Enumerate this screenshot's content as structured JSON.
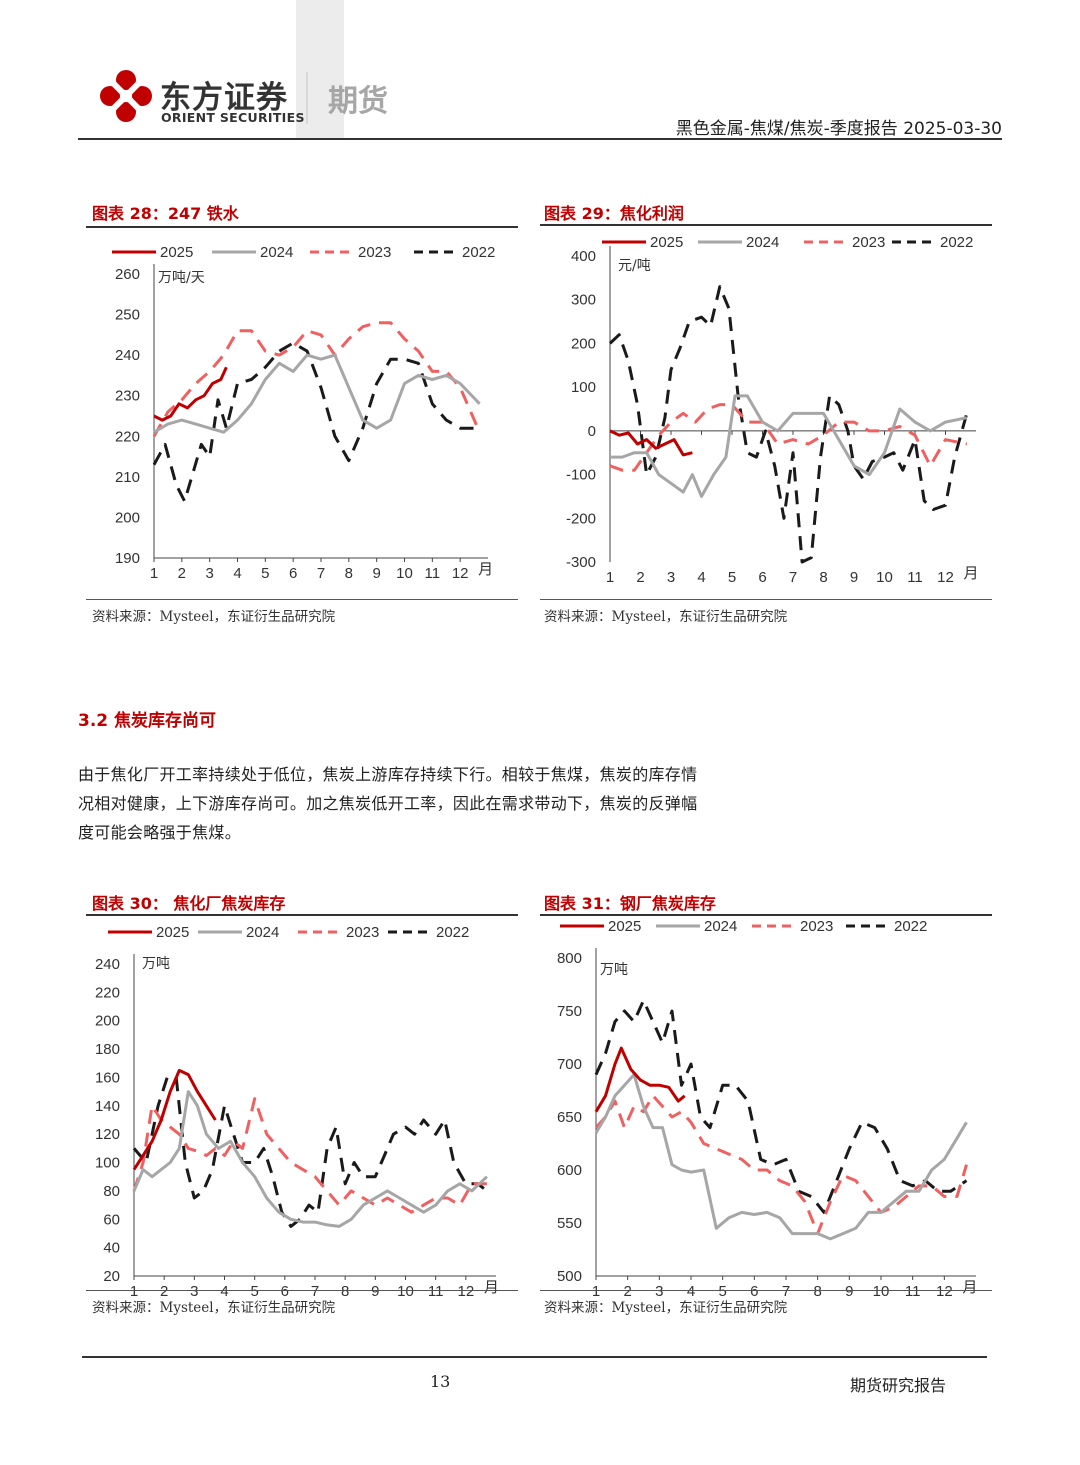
{
  "header": {
    "brand_cn": "东方证券",
    "brand_en": "ORIENT SECURITIES",
    "brand_unit": "期货",
    "report_title": "黑色金属-焦煤/焦炭-季度报告 2025-03-30",
    "colors": {
      "brand_red": "#c00000",
      "gray": "#a6a6a6"
    }
  },
  "charts": [
    {
      "fig_title": "图表 28：247 铁水",
      "source": "资料来源：Mysteel，东证衍生品研究院",
      "unit": "万吨/天",
      "month_suffix": "月",
      "yticks": [
        "260",
        "250",
        "240",
        "230",
        "220",
        "210",
        "200",
        "190"
      ],
      "xticks": [
        "1",
        "2",
        "3",
        "4",
        "5",
        "6",
        "7",
        "8",
        "9",
        "10",
        "11",
        "12"
      ],
      "legend": [
        "2025",
        "2024",
        "2023",
        "2022"
      ]
    },
    {
      "fig_title": "图表 29：焦化利润",
      "source": "资料来源：Mysteel，东证衍生品研究院",
      "unit": "元/吨",
      "month_suffix": "月",
      "yticks": [
        "400",
        "300",
        "200",
        "100",
        "0",
        "-100",
        "-200",
        "-300"
      ],
      "xticks": [
        "1",
        "2",
        "3",
        "4",
        "5",
        "6",
        "7",
        "8",
        "9",
        "10",
        "11",
        "12"
      ],
      "legend": [
        "2025",
        "2024",
        "2023",
        "2022"
      ]
    },
    {
      "fig_title": "图表 30： 焦化厂焦炭库存",
      "source": "资料来源：Mysteel，东证衍生品研究院",
      "unit": "万吨",
      "month_suffix": "月",
      "yticks": [
        "240",
        "220",
        "200",
        "180",
        "160",
        "140",
        "120",
        "100",
        "80",
        "60",
        "40",
        "20"
      ],
      "xticks": [
        "1",
        "2",
        "3",
        "4",
        "5",
        "6",
        "7",
        "8",
        "9",
        "10",
        "11",
        "12"
      ],
      "legend": [
        "2025",
        "2024",
        "2023",
        "2022"
      ]
    },
    {
      "fig_title": "图表 31：钢厂焦炭库存",
      "source": "资料来源：Mysteel，东证衍生品研究院",
      "unit": "万吨",
      "month_suffix": "月",
      "yticks": [
        "800",
        "750",
        "700",
        "650",
        "600",
        "550",
        "500"
      ],
      "xticks": [
        "1",
        "2",
        "3",
        "4",
        "5",
        "6",
        "7",
        "8",
        "9",
        "10",
        "11",
        "12"
      ],
      "legend": [
        "2025",
        "2024",
        "2023",
        "2022"
      ]
    }
  ],
  "chart_data": [
    {
      "type": "line",
      "ylim": [
        190,
        260
      ],
      "xlim": [
        1,
        13
      ],
      "series": [
        {
          "name": "2025",
          "color": "#c00000",
          "style": "solid",
          "x": [
            1,
            1.3,
            1.6,
            1.9,
            2.2,
            2.5,
            2.8,
            3.1,
            3.4,
            3.6
          ],
          "y": [
            225,
            224,
            225,
            228,
            227,
            229,
            230,
            233,
            234,
            237
          ]
        },
        {
          "name": "2024",
          "color": "#a6a6a6",
          "style": "solid",
          "x": [
            1,
            1.5,
            2,
            2.5,
            3,
            3.5,
            4,
            4.5,
            5,
            5.5,
            6,
            6.5,
            7,
            7.5,
            8,
            8.5,
            9,
            9.5,
            10,
            10.5,
            11,
            11.5,
            12,
            12.7
          ],
          "y": [
            221,
            223,
            224,
            223,
            222,
            221,
            224,
            228,
            234,
            238,
            236,
            240,
            239,
            240,
            232,
            224,
            222,
            224,
            233,
            235,
            234,
            235,
            233,
            228
          ]
        },
        {
          "name": "2023",
          "color": "#f06060",
          "style": "dashed",
          "x": [
            1,
            1.5,
            2,
            2.5,
            3,
            3.5,
            4,
            4.5,
            5,
            5.5,
            6,
            6.5,
            7,
            7.5,
            8,
            8.5,
            9,
            9.5,
            10,
            10.5,
            11,
            11.5,
            12,
            12.7
          ],
          "y": [
            220,
            226,
            229,
            233,
            236,
            240,
            246,
            246,
            241,
            240,
            242,
            246,
            245,
            240,
            244,
            247,
            248,
            248,
            244,
            241,
            236,
            236,
            232,
            221
          ]
        },
        {
          "name": "2022",
          "color": "#1a1a1a",
          "style": "dashed",
          "x": [
            1,
            1.4,
            1.8,
            2.1,
            2.4,
            2.7,
            3,
            3.3,
            3.6,
            4,
            4.5,
            5,
            5.5,
            6,
            6.5,
            7,
            7.5,
            8,
            8.5,
            9,
            9.5,
            10,
            10.5,
            11,
            11.5,
            12,
            12.7
          ],
          "y": [
            213,
            218,
            208,
            204,
            211,
            218,
            215,
            229,
            222,
            233,
            234,
            237,
            241,
            243,
            241,
            232,
            220,
            214,
            222,
            233,
            239,
            239,
            238,
            228,
            224,
            222,
            222
          ]
        }
      ]
    },
    {
      "type": "line",
      "ylim": [
        -300,
        400
      ],
      "xlim": [
        1,
        13
      ],
      "series": [
        {
          "name": "2025",
          "color": "#c00000",
          "style": "solid",
          "x": [
            1,
            1.3,
            1.6,
            1.9,
            2.2,
            2.5,
            2.8,
            3.1,
            3.4,
            3.7
          ],
          "y": [
            0,
            -10,
            -5,
            -30,
            -20,
            -40,
            -30,
            -20,
            -55,
            -50
          ]
        },
        {
          "name": "2024",
          "color": "#a6a6a6",
          "style": "solid",
          "x": [
            1,
            1.4,
            1.8,
            2.2,
            2.6,
            3,
            3.4,
            3.7,
            4,
            4.4,
            4.8,
            5.1,
            5.5,
            6,
            6.5,
            7,
            7.5,
            8,
            8.5,
            9,
            9.5,
            10,
            10.5,
            11,
            11.5,
            12,
            12.7
          ],
          "y": [
            -60,
            -60,
            -50,
            -50,
            -100,
            -120,
            -140,
            -100,
            -150,
            -100,
            -60,
            80,
            80,
            20,
            0,
            40,
            40,
            40,
            -20,
            -80,
            -100,
            -50,
            50,
            20,
            0,
            20,
            30
          ]
        },
        {
          "name": "2023",
          "color": "#f06060",
          "style": "dashed",
          "x": [
            1,
            1.4,
            1.8,
            2.2,
            2.6,
            3,
            3.4,
            3.8,
            4.2,
            4.6,
            5,
            5.5,
            6,
            6.5,
            7,
            7.5,
            8,
            8.5,
            9,
            9.5,
            10,
            10.5,
            11,
            11.5,
            12,
            12.7
          ],
          "y": [
            -80,
            -90,
            -90,
            -50,
            -10,
            20,
            40,
            20,
            50,
            60,
            60,
            20,
            20,
            -30,
            -20,
            -30,
            -10,
            20,
            20,
            0,
            0,
            10,
            -10,
            -80,
            -20,
            -30
          ]
        },
        {
          "name": "2022",
          "color": "#1a1a1a",
          "style": "dashed",
          "x": [
            1,
            1.3,
            1.6,
            1.9,
            2.2,
            2.5,
            2.8,
            3,
            3.3,
            3.6,
            4,
            4.3,
            4.6,
            4.9,
            5.2,
            5.5,
            5.8,
            6.1,
            6.4,
            6.7,
            7,
            7.3,
            7.6,
            7.9,
            8.2,
            8.5,
            8.8,
            9,
            9.3,
            9.6,
            10,
            10.3,
            10.6,
            11,
            11.3,
            11.6,
            12,
            12.3,
            12.7
          ],
          "y": [
            200,
            220,
            160,
            60,
            -100,
            -60,
            30,
            140,
            190,
            250,
            260,
            240,
            330,
            280,
            80,
            -50,
            -60,
            0,
            -80,
            -200,
            -50,
            -300,
            -290,
            -60,
            80,
            60,
            0,
            -80,
            -110,
            -70,
            -60,
            -50,
            -90,
            -20,
            -160,
            -180,
            -170,
            -60,
            40
          ]
        }
      ]
    },
    {
      "type": "line",
      "ylim": [
        20,
        240
      ],
      "xlim": [
        1,
        13
      ],
      "series": [
        {
          "name": "2025",
          "color": "#c00000",
          "style": "solid",
          "x": [
            1,
            1.3,
            1.6,
            1.9,
            2.2,
            2.5,
            2.8,
            3.1,
            3.4,
            3.7
          ],
          "y": [
            95,
            105,
            115,
            130,
            150,
            165,
            162,
            150,
            140,
            130
          ]
        },
        {
          "name": "2024",
          "color": "#a6a6a6",
          "style": "solid",
          "x": [
            1,
            1.3,
            1.6,
            1.9,
            2.2,
            2.5,
            2.8,
            3.1,
            3.4,
            3.8,
            4.2,
            4.6,
            5,
            5.4,
            5.8,
            6.2,
            6.6,
            7,
            7.4,
            7.8,
            8.2,
            8.6,
            9,
            9.4,
            9.8,
            10.2,
            10.6,
            11,
            11.4,
            11.8,
            12.2,
            12.7
          ],
          "y": [
            80,
            95,
            90,
            95,
            100,
            110,
            150,
            140,
            120,
            110,
            115,
            100,
            90,
            75,
            65,
            60,
            58,
            58,
            56,
            55,
            60,
            70,
            75,
            80,
            75,
            70,
            65,
            70,
            80,
            85,
            80,
            90
          ]
        },
        {
          "name": "2023",
          "color": "#f06060",
          "style": "dashed",
          "x": [
            1,
            1.3,
            1.6,
            1.9,
            2.2,
            2.5,
            2.8,
            3.1,
            3.4,
            3.7,
            4,
            4.3,
            4.6,
            5,
            5.4,
            5.8,
            6.2,
            6.6,
            7,
            7.4,
            7.8,
            8.2,
            8.6,
            9,
            9.4,
            9.8,
            10.2,
            10.6,
            11,
            11.4,
            11.8,
            12.2,
            12.7
          ],
          "y": [
            80,
            100,
            140,
            130,
            125,
            120,
            110,
            108,
            105,
            110,
            105,
            115,
            110,
            145,
            120,
            110,
            100,
            95,
            90,
            80,
            70,
            80,
            75,
            70,
            75,
            70,
            65,
            70,
            75,
            75,
            70,
            85,
            85
          ]
        },
        {
          "name": "2022",
          "color": "#1a1a1a",
          "style": "dashed",
          "x": [
            1,
            1.4,
            1.8,
            2.1,
            2.4,
            2.7,
            3,
            3.3,
            3.6,
            4,
            4.3,
            4.6,
            5,
            5.3,
            5.6,
            5.9,
            6.2,
            6.5,
            6.8,
            7.1,
            7.4,
            7.7,
            8,
            8.3,
            8.6,
            9,
            9.3,
            9.6,
            10,
            10.3,
            10.6,
            11,
            11.3,
            11.6,
            12,
            12.4,
            12.7
          ],
          "y": [
            110,
            100,
            140,
            160,
            160,
            100,
            75,
            80,
            95,
            140,
            120,
            100,
            100,
            110,
            90,
            65,
            55,
            60,
            70,
            65,
            110,
            125,
            85,
            100,
            90,
            90,
            105,
            120,
            125,
            120,
            130,
            120,
            130,
            100,
            85,
            85,
            80
          ]
        }
      ]
    },
    {
      "type": "line",
      "ylim": [
        500,
        800
      ],
      "xlim": [
        1,
        13
      ],
      "series": [
        {
          "name": "2025",
          "color": "#c00000",
          "style": "solid",
          "x": [
            1,
            1.3,
            1.6,
            1.8,
            2.1,
            2.4,
            2.7,
            3,
            3.3,
            3.6,
            3.8
          ],
          "y": [
            655,
            670,
            700,
            715,
            695,
            685,
            680,
            680,
            678,
            665,
            670
          ]
        },
        {
          "name": "2024",
          "color": "#a6a6a6",
          "style": "solid",
          "x": [
            1,
            1.3,
            1.6,
            1.9,
            2.2,
            2.5,
            2.8,
            3.1,
            3.4,
            3.7,
            4,
            4.4,
            4.8,
            5.2,
            5.6,
            6,
            6.4,
            6.8,
            7.2,
            7.6,
            8,
            8.4,
            8.8,
            9.2,
            9.6,
            10,
            10.4,
            10.8,
            11.2,
            11.6,
            12,
            12.4,
            12.7
          ],
          "y": [
            635,
            650,
            670,
            680,
            690,
            660,
            640,
            640,
            605,
            600,
            598,
            600,
            545,
            555,
            560,
            558,
            560,
            555,
            540,
            540,
            540,
            535,
            540,
            545,
            560,
            560,
            570,
            580,
            580,
            600,
            610,
            630,
            645
          ]
        },
        {
          "name": "2023",
          "color": "#f06060",
          "style": "dashed",
          "x": [
            1,
            1.3,
            1.6,
            1.9,
            2.2,
            2.5,
            2.8,
            3.1,
            3.4,
            3.7,
            4,
            4.4,
            4.8,
            5.2,
            5.6,
            6,
            6.4,
            6.8,
            7.2,
            7.6,
            8,
            8.4,
            8.8,
            9.2,
            9.6,
            10,
            10.4,
            10.8,
            11.2,
            11.6,
            12,
            12.4,
            12.7
          ],
          "y": [
            640,
            650,
            665,
            640,
            660,
            655,
            670,
            660,
            650,
            655,
            645,
            625,
            620,
            615,
            610,
            600,
            600,
            590,
            585,
            570,
            540,
            570,
            595,
            590,
            575,
            560,
            565,
            575,
            585,
            585,
            575,
            575,
            605
          ]
        },
        {
          "name": "2022",
          "color": "#1a1a1a",
          "style": "dashed",
          "x": [
            1,
            1.3,
            1.6,
            1.9,
            2.2,
            2.5,
            2.8,
            3.1,
            3.4,
            3.7,
            4,
            4.3,
            4.6,
            5,
            5.4,
            5.8,
            6.2,
            6.6,
            7,
            7.4,
            7.8,
            8.2,
            8.6,
            9,
            9.4,
            9.8,
            10.2,
            10.6,
            11,
            11.4,
            11.8,
            12.2,
            12.7
          ],
          "y": [
            690,
            710,
            740,
            750,
            740,
            760,
            740,
            720,
            750,
            680,
            700,
            650,
            640,
            680,
            680,
            665,
            610,
            605,
            610,
            580,
            575,
            560,
            590,
            620,
            645,
            640,
            620,
            590,
            585,
            590,
            580,
            580,
            590
          ]
        }
      ]
    }
  ],
  "section": {
    "title": "3.2  焦炭库存尚可",
    "lines": [
      "由于焦化厂开工率持续处于低位，焦炭上游库存持续下行。相较于焦煤，焦炭的库存情",
      "况相对健康，上下游库存尚可。加之焦炭低开工率，因此在需求带动下，焦炭的反弹幅",
      "度可能会略强于焦煤。"
    ]
  },
  "footer": {
    "page": "13",
    "label": "期货研究报告"
  }
}
